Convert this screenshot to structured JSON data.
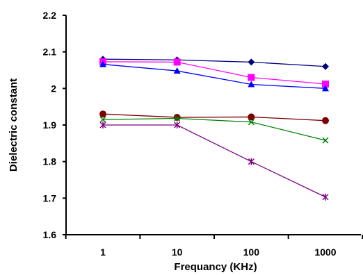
{
  "chart_data": {
    "type": "line",
    "xlabel": "Frequancy (KHz)",
    "ylabel": "Dielectric constant",
    "x": [
      1,
      10,
      100,
      1000
    ],
    "x_tick_labels": [
      "1",
      "10",
      "100",
      "1000"
    ],
    "x_scale": "log",
    "ylim": [
      1.6,
      2.2
    ],
    "y_tick_labels": [
      "1.6",
      "1.7",
      "1.8",
      "1.9",
      "2",
      "2.1",
      "2.2"
    ],
    "grid": false,
    "legend": "none",
    "series": [
      {
        "color": "#000080",
        "marker": "diamond",
        "values": [
          2.08,
          2.078,
          2.072,
          2.06
        ]
      },
      {
        "color": "#ff00ff",
        "marker": "square",
        "values": [
          2.073,
          2.072,
          2.03,
          2.012
        ]
      },
      {
        "color": "#0000ff",
        "marker": "triangle",
        "values": [
          2.066,
          2.048,
          2.011,
          2.0
        ]
      },
      {
        "color": "#800000",
        "marker": "circle",
        "values": [
          1.93,
          1.921,
          1.922,
          1.912
        ]
      },
      {
        "color": "#008000",
        "marker": "x",
        "values": [
          1.915,
          1.918,
          1.908,
          1.858
        ]
      },
      {
        "color": "#800080",
        "marker": "star",
        "values": [
          1.9,
          1.9,
          1.8,
          1.703
        ]
      }
    ]
  }
}
